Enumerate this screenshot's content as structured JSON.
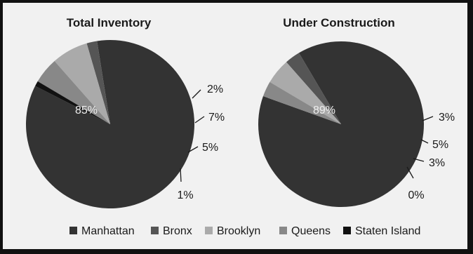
{
  "colors": {
    "background": "#f1f1f1",
    "frame": "#111111",
    "Manhattan": "#333333",
    "Bronx": "#555555",
    "Brooklyn": "#aaaaaa",
    "Queens": "#888888",
    "Staten Island": "#111111"
  },
  "chart_data": [
    {
      "type": "pie",
      "title": "Total Inventory",
      "slices": [
        {
          "name": "Manhattan",
          "value": 85,
          "label": "85%"
        },
        {
          "name": "Bronx",
          "value": 2,
          "label": "2%"
        },
        {
          "name": "Brooklyn",
          "value": 7,
          "label": "7%"
        },
        {
          "name": "Queens",
          "value": 5,
          "label": "5%"
        },
        {
          "name": "Staten Island",
          "value": 1,
          "label": "1%"
        }
      ]
    },
    {
      "type": "pie",
      "title": "Under Construction",
      "slices": [
        {
          "name": "Manhattan",
          "value": 89,
          "label": "89%"
        },
        {
          "name": "Bronx",
          "value": 3,
          "label": "3%"
        },
        {
          "name": "Brooklyn",
          "value": 5,
          "label": "5%"
        },
        {
          "name": "Queens",
          "value": 3,
          "label": "3%"
        },
        {
          "name": "Staten Island",
          "value": 0,
          "label": "0%"
        }
      ]
    }
  ],
  "legend": [
    "Manhattan",
    "Bronx",
    "Brooklyn",
    "Queens",
    "Staten Island"
  ]
}
